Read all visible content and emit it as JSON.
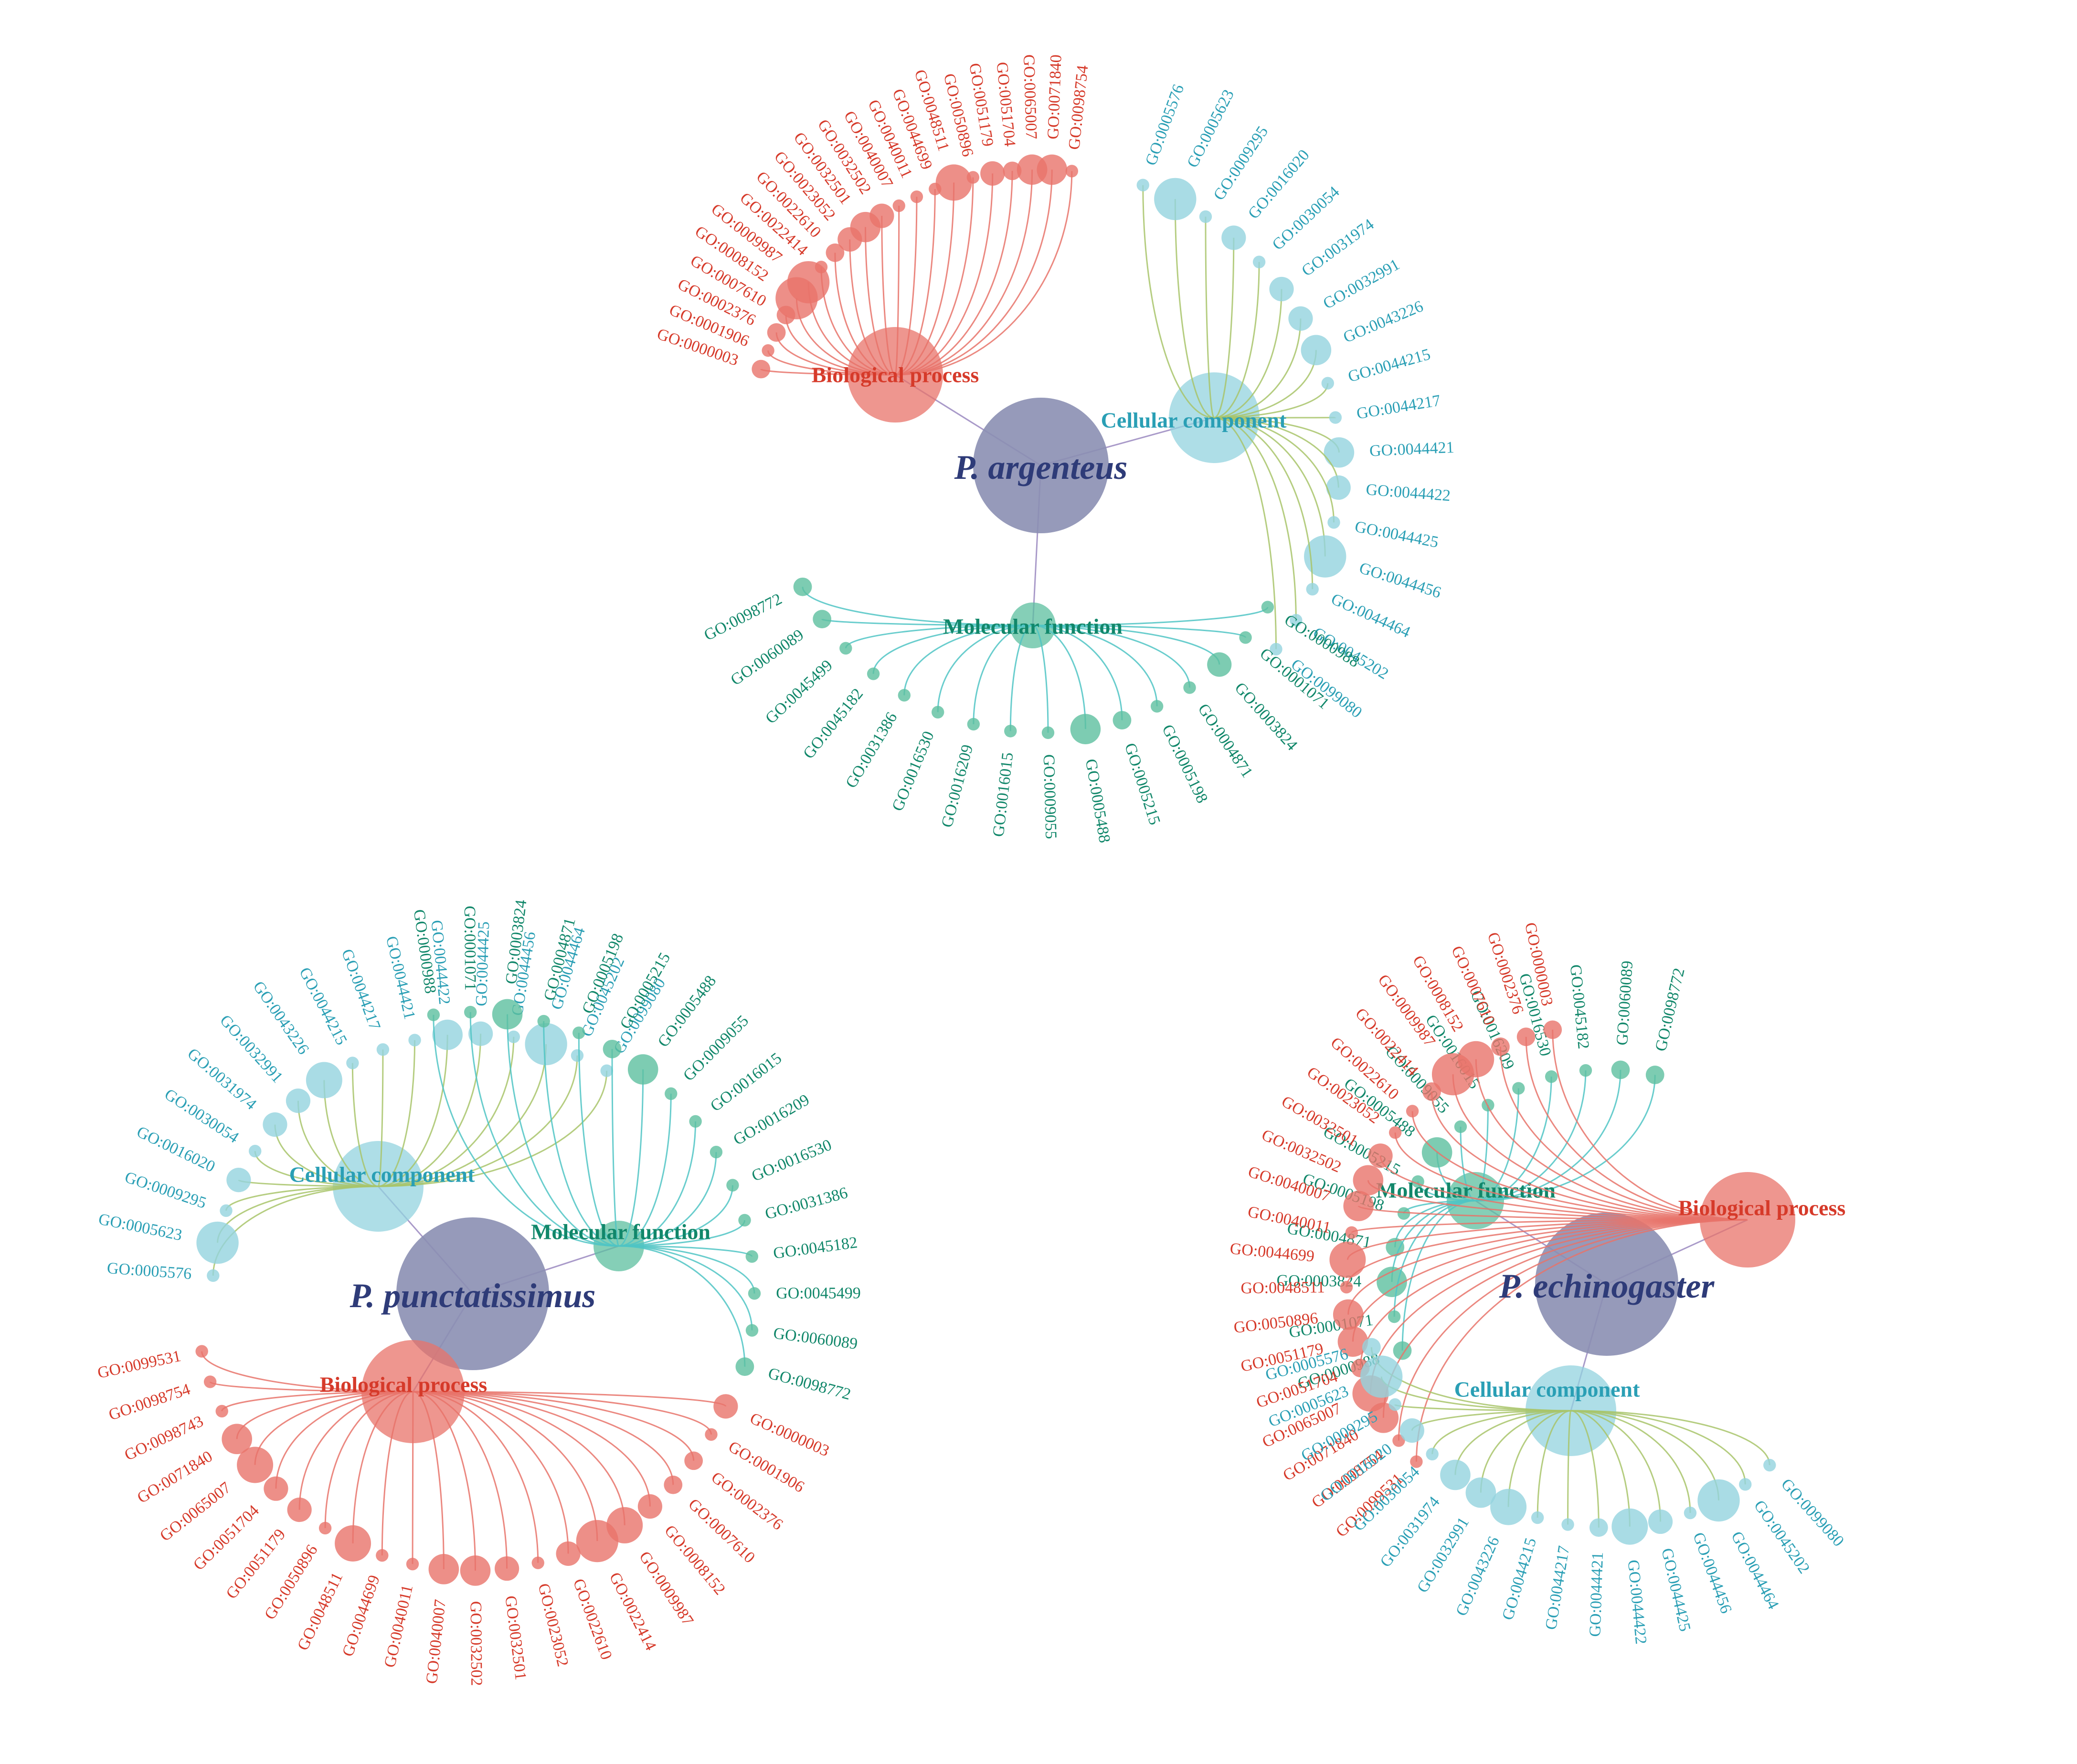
{
  "colors": {
    "bp": "#e8736a",
    "bp_text": "#d63a2a",
    "cc": "#93d3df",
    "cc_text": "#2a9fb5",
    "cc_edge": "#a8c46a",
    "mf": "#5cbf9f",
    "mf_text": "#11876a",
    "mf_edge": "#4fc4c4",
    "species": "#8b8fb3",
    "species_text": "#2e3b78",
    "link": "#a99ac9"
  },
  "clusters": [
    {
      "species": "P. argenteus",
      "categories": [
        {
          "key": "bp",
          "name": "Biological process",
          "terms": [
            "GO:0000003",
            "GO:0001906",
            "GO:0002376",
            "GO:0007610",
            "GO:0008152",
            "GO:0009987",
            "GO:0022414",
            "GO:0022610",
            "GO:0023052",
            "GO:0032501",
            "GO:0032502",
            "GO:0040007",
            "GO:0040011",
            "GO:0044699",
            "GO:0048511",
            "GO:0050896",
            "GO:0051179",
            "GO:0051704",
            "GO:0065007",
            "GO:0071840",
            "GO:0098754"
          ],
          "sizes": [
            2,
            1,
            2,
            2,
            6,
            6,
            1,
            2,
            3,
            4,
            3,
            1,
            1,
            1,
            5,
            1,
            3,
            2,
            4,
            4,
            1
          ]
        },
        {
          "key": "cc",
          "name": "Cellular component",
          "terms": [
            "GO:0005576",
            "GO:0005623",
            "GO:0009295",
            "GO:0016020",
            "GO:0030054",
            "GO:0031974",
            "GO:0032991",
            "GO:0043226",
            "GO:0044215",
            "GO:0044217",
            "GO:0044421",
            "GO:0044422",
            "GO:0044425",
            "GO:0044456",
            "GO:0044464",
            "GO:0045202",
            "GO:0099080"
          ],
          "sizes": [
            1,
            6,
            1,
            3,
            1,
            3,
            3,
            4,
            1,
            1,
            4,
            3,
            1,
            6,
            1,
            1,
            1
          ]
        },
        {
          "key": "mf",
          "name": "Molecular function",
          "terms": [
            "GO:0098772",
            "GO:0060089",
            "GO:0045499",
            "GO:0045182",
            "GO:0031386",
            "GO:0016530",
            "GO:0016209",
            "GO:0016015",
            "GO:0009055",
            "GO:0005488",
            "GO:0005215",
            "GO:0005198",
            "GO:0004871",
            "GO:0003824",
            "GO:0001071",
            "GO:0000988"
          ],
          "sizes": [
            2,
            2,
            1,
            1,
            1,
            1,
            1,
            1,
            1,
            4,
            2,
            1,
            1,
            3,
            1,
            1
          ]
        }
      ]
    },
    {
      "species": "P. punctatissimus",
      "categories": [
        {
          "key": "cc",
          "name": "Cellular component",
          "terms": [
            "GO:0005576",
            "GO:0005623",
            "GO:0009295",
            "GO:0016020",
            "GO:0030054",
            "GO:0031974",
            "GO:0032991",
            "GO:0043226",
            "GO:0044215",
            "GO:0044217",
            "GO:0044421",
            "GO:0044422",
            "GO:0044425",
            "GO:0044456",
            "GO:0044464",
            "GO:0045202",
            "GO:0099080"
          ],
          "sizes": [
            1,
            6,
            1,
            3,
            1,
            3,
            3,
            5,
            1,
            1,
            1,
            4,
            3,
            1,
            6,
            1,
            1
          ]
        },
        {
          "key": "mf",
          "name": "Molecular function",
          "terms": [
            "GO:0000988",
            "GO:0001071",
            "GO:0003824",
            "GO:0004871",
            "GO:0005198",
            "GO:0005215",
            "GO:0005488",
            "GO:0009055",
            "GO:0016015",
            "GO:0016209",
            "GO:0016530",
            "GO:0031386",
            "GO:0045182",
            "GO:0045499",
            "GO:0060089",
            "GO:0098772"
          ],
          "sizes": [
            1,
            1,
            4,
            1,
            1,
            2,
            4,
            1,
            1,
            1,
            1,
            1,
            1,
            1,
            1,
            2
          ]
        },
        {
          "key": "bp",
          "name": "Biological process",
          "terms": [
            "GO:0099531",
            "GO:0098754",
            "GO:0098743",
            "GO:0071840",
            "GO:0065007",
            "GO:0051704",
            "GO:0051179",
            "GO:0050896",
            "GO:0048511",
            "GO:0044699",
            "GO:0040011",
            "GO:0040007",
            "GO:0032502",
            "GO:0032501",
            "GO:0023052",
            "GO:0022610",
            "GO:0022414",
            "GO:0009987",
            "GO:0008152",
            "GO:0007610",
            "GO:0002376",
            "GO:0001906",
            "GO:0000003"
          ],
          "sizes": [
            1,
            1,
            1,
            4,
            5,
            3,
            3,
            1,
            5,
            1,
            1,
            4,
            4,
            3,
            1,
            3,
            6,
            5,
            3,
            2,
            2,
            1,
            3
          ]
        }
      ]
    },
    {
      "species": "P. echinogaster",
      "categories": [
        {
          "key": "mf",
          "name": "Molecular function",
          "terms": [
            "GO:0098772",
            "GO:0060089",
            "GO:0045182",
            "GO:0016530",
            "GO:0016209",
            "GO:0016015",
            "GO:0009055",
            "GO:0005488",
            "GO:0005215",
            "GO:0005198",
            "GO:0004871",
            "GO:0003824",
            "GO:0001071",
            "GO:0000988"
          ],
          "sizes": [
            2,
            2,
            1,
            1,
            1,
            1,
            1,
            4,
            1,
            1,
            2,
            4,
            1,
            2
          ]
        },
        {
          "key": "bp",
          "name": "Biological process",
          "terms": [
            "GO:0000003",
            "GO:0002376",
            "GO:0007610",
            "GO:0008152",
            "GO:0009987",
            "GO:0022414",
            "GO:0022610",
            "GO:0023052",
            "GO:0032501",
            "GO:0032502",
            "GO:0040007",
            "GO:0040011",
            "GO:0044699",
            "GO:0048511",
            "GO:0050896",
            "GO:0051179",
            "GO:0051704",
            "GO:0065007",
            "GO:0071840",
            "GO:0098754",
            "GO:0099531"
          ],
          "sizes": [
            2,
            2,
            2,
            5,
            6,
            2,
            1,
            1,
            3,
            4,
            4,
            1,
            5,
            1,
            4,
            4,
            2,
            5,
            4,
            1,
            1
          ]
        },
        {
          "key": "cc",
          "name": "Cellular component",
          "terms": [
            "GO:0005576",
            "GO:0005623",
            "GO:0009295",
            "GO:0016020",
            "GO:0030054",
            "GO:0031974",
            "GO:0032991",
            "GO:0043226",
            "GO:0044215",
            "GO:0044217",
            "GO:0044421",
            "GO:0044422",
            "GO:0044425",
            "GO:0044456",
            "GO:0044464",
            "GO:0045202",
            "GO:0099080"
          ],
          "sizes": [
            2,
            6,
            1,
            3,
            1,
            4,
            4,
            5,
            1,
            1,
            2,
            5,
            3,
            1,
            6,
            1,
            1
          ]
        }
      ]
    }
  ]
}
